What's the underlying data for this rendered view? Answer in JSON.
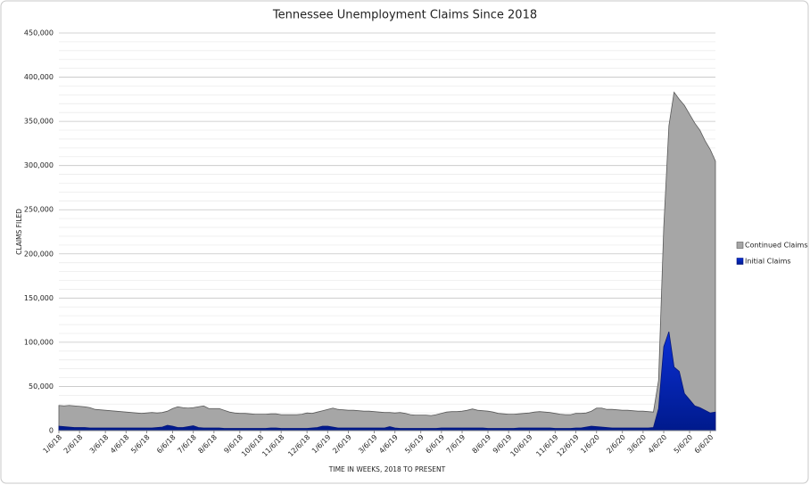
{
  "chart_data": {
    "type": "area",
    "title": "Tennessee  Unemployment  Claims Since 2018",
    "x_label": "TIME IN WEEKS, 2018 TO PRESENT",
    "y_label": "CLAIMS FILED",
    "categories": [
      "1/6/18",
      null,
      null,
      null,
      "2/6/18",
      null,
      null,
      null,
      null,
      "3/6/18",
      null,
      null,
      null,
      "4/6/18",
      null,
      null,
      null,
      "5/6/18",
      null,
      null,
      null,
      null,
      "6/6/18",
      null,
      null,
      null,
      "7/6/18",
      null,
      null,
      null,
      "8/6/18",
      null,
      null,
      null,
      null,
      "9/6/18",
      null,
      null,
      null,
      "10/6/18",
      null,
      null,
      null,
      "11/6/18",
      null,
      null,
      null,
      null,
      "12/6/18",
      null,
      null,
      null,
      "1/6/19",
      null,
      null,
      null,
      "2/6/19",
      null,
      null,
      null,
      null,
      "3/6/19",
      null,
      null,
      null,
      "4/6/19",
      null,
      null,
      null,
      null,
      "5/6/19",
      null,
      null,
      null,
      "6/6/19",
      null,
      null,
      null,
      "7/6/19",
      null,
      null,
      null,
      null,
      "8/6/19",
      null,
      null,
      null,
      "9/6/19",
      null,
      null,
      null,
      "10/6/19",
      null,
      null,
      null,
      null,
      "11/6/19",
      null,
      null,
      null,
      "12/6/19",
      null,
      null,
      null,
      "1/6/20",
      null,
      null,
      null,
      null,
      "2/6/20",
      null,
      null,
      null,
      "3/6/20",
      null,
      null,
      null,
      "4/6/20",
      null,
      null,
      null,
      null,
      "5/6/20",
      null,
      null,
      null,
      "6/6/20",
      null
    ],
    "series": [
      {
        "name": "Continued Claims",
        "color": "#a6a6a6",
        "stroke": "#595959",
        "values": [
          28500,
          28000,
          28500,
          28000,
          27500,
          27000,
          26000,
          24000,
          23500,
          23000,
          22500,
          22000,
          21500,
          21000,
          20500,
          20000,
          19500,
          20000,
          20500,
          20000,
          20500,
          22000,
          25000,
          27000,
          26000,
          25500,
          26000,
          27000,
          28000,
          25000,
          25000,
          25000,
          23000,
          21000,
          20000,
          19500,
          19500,
          19000,
          18500,
          18500,
          18500,
          19000,
          19000,
          18000,
          18000,
          18000,
          18000,
          18500,
          20000,
          19500,
          21000,
          22500,
          24000,
          25500,
          24000,
          23500,
          23000,
          23000,
          22500,
          22000,
          22000,
          21500,
          21000,
          20500,
          20500,
          20000,
          20500,
          19500,
          18000,
          17500,
          17500,
          17500,
          17000,
          18000,
          19500,
          21000,
          21500,
          21500,
          22000,
          23000,
          24500,
          23000,
          22500,
          22000,
          21000,
          19500,
          19000,
          18500,
          18500,
          19000,
          19500,
          20000,
          21000,
          21500,
          21000,
          20500,
          19500,
          18500,
          18000,
          18000,
          19500,
          19500,
          20000,
          22000,
          25500,
          25500,
          24000,
          24000,
          23500,
          23000,
          23000,
          22500,
          22000,
          22000,
          21500,
          21000,
          57000,
          230000,
          345000,
          383000,
          375000,
          368000,
          358000,
          348000,
          340000,
          328000,
          318000,
          305000
        ]
      },
      {
        "name": "Initial Claims",
        "color": "#0a2fd6",
        "stroke": "#06177a",
        "values": [
          5000,
          4500,
          4000,
          3500,
          3500,
          3500,
          3000,
          3000,
          3000,
          3000,
          3000,
          3000,
          3000,
          3000,
          3000,
          3000,
          3000,
          3000,
          3000,
          3500,
          4000,
          6000,
          5000,
          3500,
          3500,
          4500,
          5500,
          3500,
          3000,
          3000,
          3000,
          3000,
          2500,
          2500,
          2500,
          2500,
          2500,
          2500,
          2500,
          2500,
          2500,
          3000,
          3000,
          2500,
          2500,
          2500,
          2500,
          2500,
          2500,
          3000,
          3500,
          5000,
          5000,
          4000,
          3000,
          3000,
          3000,
          3000,
          3000,
          3000,
          3000,
          3000,
          3000,
          3000,
          4500,
          3000,
          2500,
          2500,
          2500,
          2500,
          2500,
          2500,
          2500,
          2500,
          3000,
          3000,
          3000,
          3000,
          3000,
          3000,
          3000,
          3000,
          3000,
          2500,
          2500,
          2500,
          2500,
          2500,
          2500,
          3000,
          3000,
          3000,
          3000,
          3000,
          3000,
          3000,
          2500,
          2500,
          2500,
          2500,
          3000,
          3000,
          4000,
          5000,
          4500,
          4000,
          3500,
          3000,
          3000,
          3000,
          3000,
          3000,
          3000,
          3000,
          3000,
          3500,
          25000,
          95000,
          112000,
          72000,
          67000,
          42000,
          35000,
          28000,
          26000,
          23000,
          20000,
          21000
        ]
      }
    ],
    "ylim": [
      0,
      450000
    ],
    "yticks": [
      0,
      {
        "value": 50000,
        "label": "50,000"
      },
      {
        "value": 100000,
        "label": "100,000"
      },
      {
        "value": 150000,
        "label": "150,000"
      },
      {
        "value": 200000,
        "label": "200,000"
      },
      {
        "value": 250000,
        "label": "250,000"
      },
      {
        "value": 300000,
        "label": "300,000"
      },
      {
        "value": 350000,
        "label": "350,000"
      },
      {
        "value": 400000,
        "label": "400,000"
      },
      {
        "value": 450000,
        "label": "450,000"
      }
    ],
    "grid": true,
    "minor_grid": true,
    "legend": "right"
  }
}
